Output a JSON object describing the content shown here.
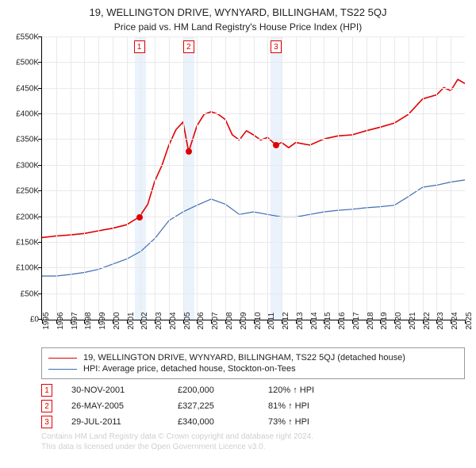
{
  "title": "19, WELLINGTON DRIVE, WYNYARD, BILLINGHAM, TS22 5QJ",
  "subtitle": "Price paid vs. HM Land Registry's House Price Index (HPI)",
  "chart": {
    "type": "line",
    "background_color": "#ffffff",
    "grid_color": "#e9e9e9",
    "axis_color": "#000000",
    "label_fontsize": 10,
    "y_axis": {
      "min": 0,
      "max": 550,
      "step": 50,
      "prefix": "£",
      "suffix": "K"
    },
    "x_axis": {
      "min": 1995,
      "max": 2025,
      "step": 1
    },
    "bands": [
      {
        "from": 2001.6,
        "to": 2002.4,
        "color": "#eaf2fb"
      },
      {
        "from": 2005.0,
        "to": 2005.8,
        "color": "#eaf2fb"
      },
      {
        "from": 2011.2,
        "to": 2012.0,
        "color": "#eaf2fb"
      }
    ],
    "series": [
      {
        "id": "property",
        "label": "19, WELLINGTON DRIVE, WYNYARD, BILLINGHAM, TS22 5QJ (detached house)",
        "color": "#e10000",
        "width": 1.6,
        "points": [
          [
            1995,
            160
          ],
          [
            1996,
            163
          ],
          [
            1997,
            165
          ],
          [
            1998,
            168
          ],
          [
            1999,
            173
          ],
          [
            2000,
            178
          ],
          [
            2001,
            185
          ],
          [
            2001.9,
            200
          ],
          [
            2002.5,
            225
          ],
          [
            2003,
            270
          ],
          [
            2003.5,
            300
          ],
          [
            2004,
            340
          ],
          [
            2004.5,
            370
          ],
          [
            2005,
            385
          ],
          [
            2005.4,
            327
          ],
          [
            2006,
            378
          ],
          [
            2006.5,
            400
          ],
          [
            2007,
            405
          ],
          [
            2007.5,
            400
          ],
          [
            2008,
            390
          ],
          [
            2008.5,
            360
          ],
          [
            2009,
            350
          ],
          [
            2009.5,
            368
          ],
          [
            2010,
            360
          ],
          [
            2010.5,
            350
          ],
          [
            2011,
            355
          ],
          [
            2011.6,
            340
          ],
          [
            2012,
            345
          ],
          [
            2012.5,
            335
          ],
          [
            2013,
            345
          ],
          [
            2014,
            340
          ],
          [
            2015,
            352
          ],
          [
            2016,
            358
          ],
          [
            2017,
            360
          ],
          [
            2018,
            368
          ],
          [
            2019,
            375
          ],
          [
            2020,
            383
          ],
          [
            2021,
            400
          ],
          [
            2022,
            430
          ],
          [
            2023,
            438
          ],
          [
            2023.5,
            452
          ],
          [
            2024,
            446
          ],
          [
            2024.5,
            468
          ],
          [
            2025,
            460
          ]
        ]
      },
      {
        "id": "hpi",
        "label": "HPI: Average price, detached house, Stockton-on-Tees",
        "color": "#3e6db5",
        "width": 1.2,
        "points": [
          [
            1995,
            85
          ],
          [
            1996,
            85
          ],
          [
            1997,
            88
          ],
          [
            1998,
            92
          ],
          [
            1999,
            98
          ],
          [
            2000,
            108
          ],
          [
            2001,
            118
          ],
          [
            2002,
            133
          ],
          [
            2003,
            158
          ],
          [
            2004,
            193
          ],
          [
            2005,
            210
          ],
          [
            2006,
            223
          ],
          [
            2007,
            235
          ],
          [
            2008,
            225
          ],
          [
            2009,
            205
          ],
          [
            2010,
            210
          ],
          [
            2011,
            205
          ],
          [
            2012,
            200
          ],
          [
            2013,
            200
          ],
          [
            2014,
            205
          ],
          [
            2015,
            210
          ],
          [
            2016,
            213
          ],
          [
            2017,
            215
          ],
          [
            2018,
            218
          ],
          [
            2019,
            220
          ],
          [
            2020,
            223
          ],
          [
            2021,
            240
          ],
          [
            2022,
            258
          ],
          [
            2023,
            262
          ],
          [
            2024,
            268
          ],
          [
            2025,
            272
          ]
        ]
      }
    ],
    "markers": [
      {
        "n": "1",
        "x": 2001.9,
        "y": 200,
        "color": "#e10000"
      },
      {
        "n": "2",
        "x": 2005.4,
        "y": 327,
        "color": "#e10000"
      },
      {
        "n": "3",
        "x": 2011.6,
        "y": 340,
        "color": "#e10000"
      }
    ]
  },
  "legend": [
    {
      "series": "property"
    },
    {
      "series": "hpi"
    }
  ],
  "transactions": [
    {
      "n": "1",
      "date": "30-NOV-2001",
      "price": "£200,000",
      "ratio": "120%",
      "suffix": "HPI",
      "color": "#e10000"
    },
    {
      "n": "2",
      "date": "26-MAY-2005",
      "price": "£327,225",
      "ratio": "81%",
      "suffix": "HPI",
      "color": "#e10000"
    },
    {
      "n": "3",
      "date": "29-JUL-2011",
      "price": "£340,000",
      "ratio": "73%",
      "suffix": "HPI",
      "color": "#e10000"
    }
  ],
  "footer": [
    "Contains HM Land Registry data © Crown copyright and database right 2024.",
    "This data is licensed under the Open Government Licence v3.0."
  ]
}
